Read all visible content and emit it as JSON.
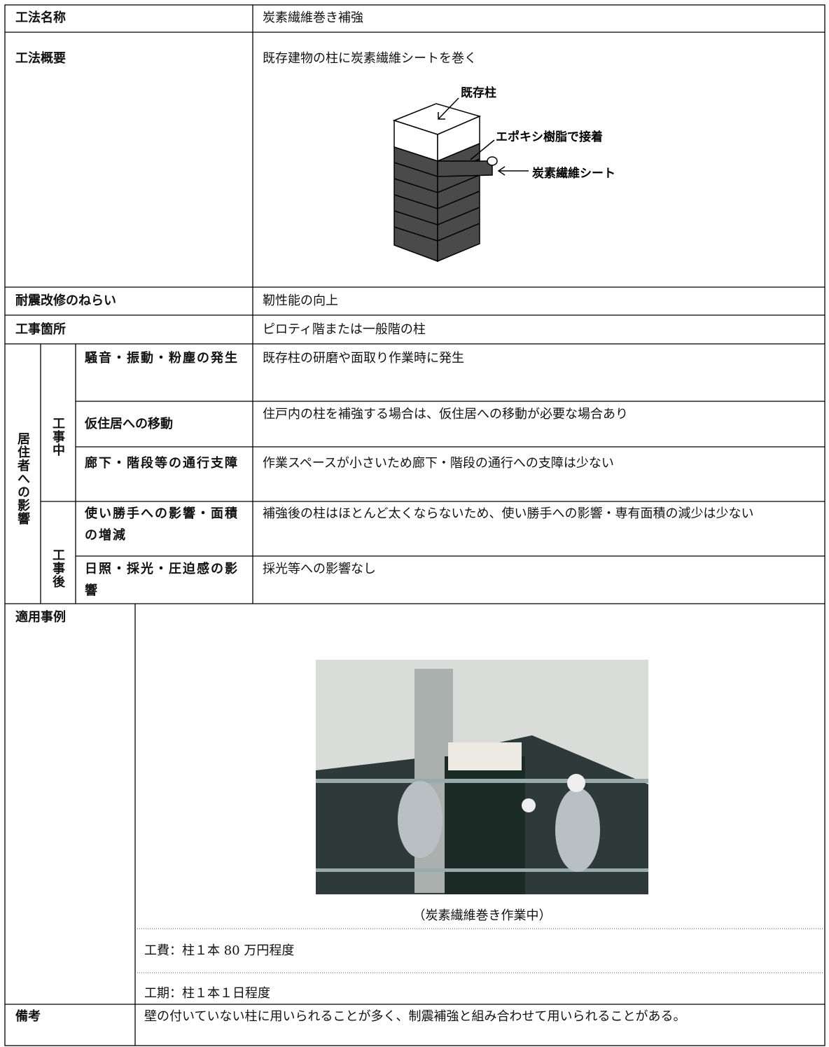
{
  "method_name": {
    "label": "工法名称",
    "value": "炭素繊維巻き補強"
  },
  "overview": {
    "label": "工法概要",
    "value": "既存建物の柱に炭素繊維シートを巻く",
    "diagram": {
      "column": "既存柱",
      "adhesive": "エポキシ樹脂で接着",
      "sheet": "炭素繊維シート"
    }
  },
  "aim": {
    "label": "耐震改修のねらい",
    "value": "靭性能の向上"
  },
  "location": {
    "label": "工事箇所",
    "value": "ピロティ階または一般階の柱"
  },
  "impact": {
    "label": "居住者への影響",
    "groups": [
      {
        "label": "工事中",
        "items": [
          {
            "label": "騒音・振動・粉塵の発生",
            "value": "既存柱の研磨や面取り作業時に発生"
          },
          {
            "label": "仮住居への移動",
            "value": "住戸内の柱を補強する場合は、仮住居への移動が必要な場合あり"
          },
          {
            "label": "廊下・階段等の通行支障",
            "value": "作業スペースが小さいため廊下・階段の通行への支障は少ない"
          }
        ]
      },
      {
        "label": "工事後",
        "items": [
          {
            "label": "使い勝手への影響・面積の増減",
            "value": "補強後の柱はほとんど太くならないため、使い勝手への影響・専有面積の減少は少ない"
          },
          {
            "label": "日照・採光・圧迫感の影響",
            "value": "採光等への影響なし"
          }
        ]
      }
    ]
  },
  "example": {
    "label": "適用事例",
    "caption": "（炭素繊維巻き作業中）",
    "cost": "工費：柱１本 80 万円程度",
    "period": "工期：柱１本１日程度"
  },
  "remarks": {
    "label": "備考",
    "value": "壁の付いていない柱に用いられることが多く、制震補強と組み合わせて用いられることがある。"
  }
}
